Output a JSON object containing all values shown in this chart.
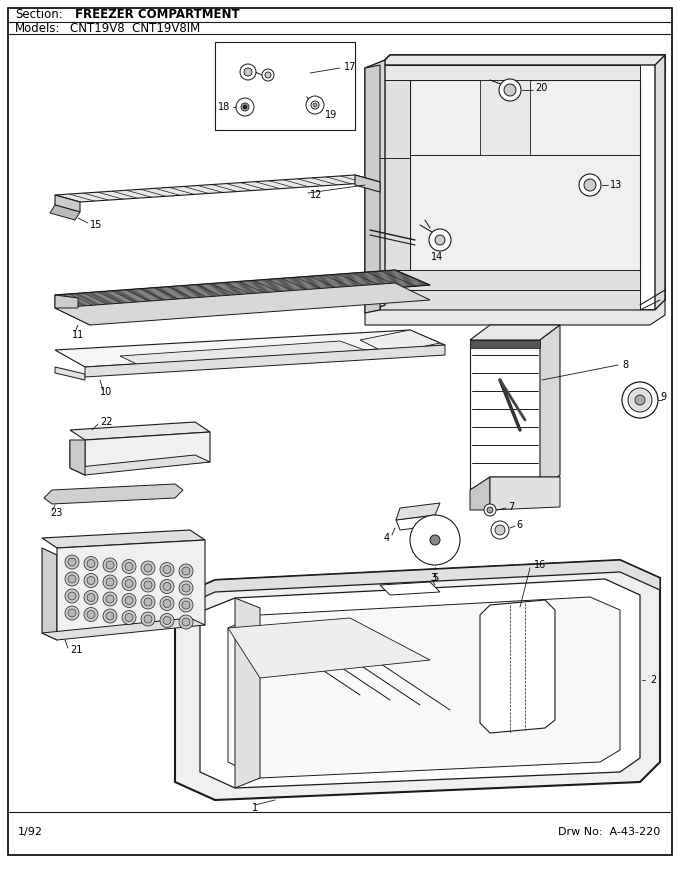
{
  "section_label": "Section:",
  "section_value": "FREEZER COMPARTMENT",
  "models_label": "Models:",
  "models_value": "CNT19V8  CNT19V8IM",
  "footer_left": "1/92",
  "footer_right": "Drw No:  A-43-220",
  "bg_color": "#ffffff",
  "lc": "#1a1a1a",
  "fig_width": 6.8,
  "fig_height": 8.9,
  "dpi": 100
}
